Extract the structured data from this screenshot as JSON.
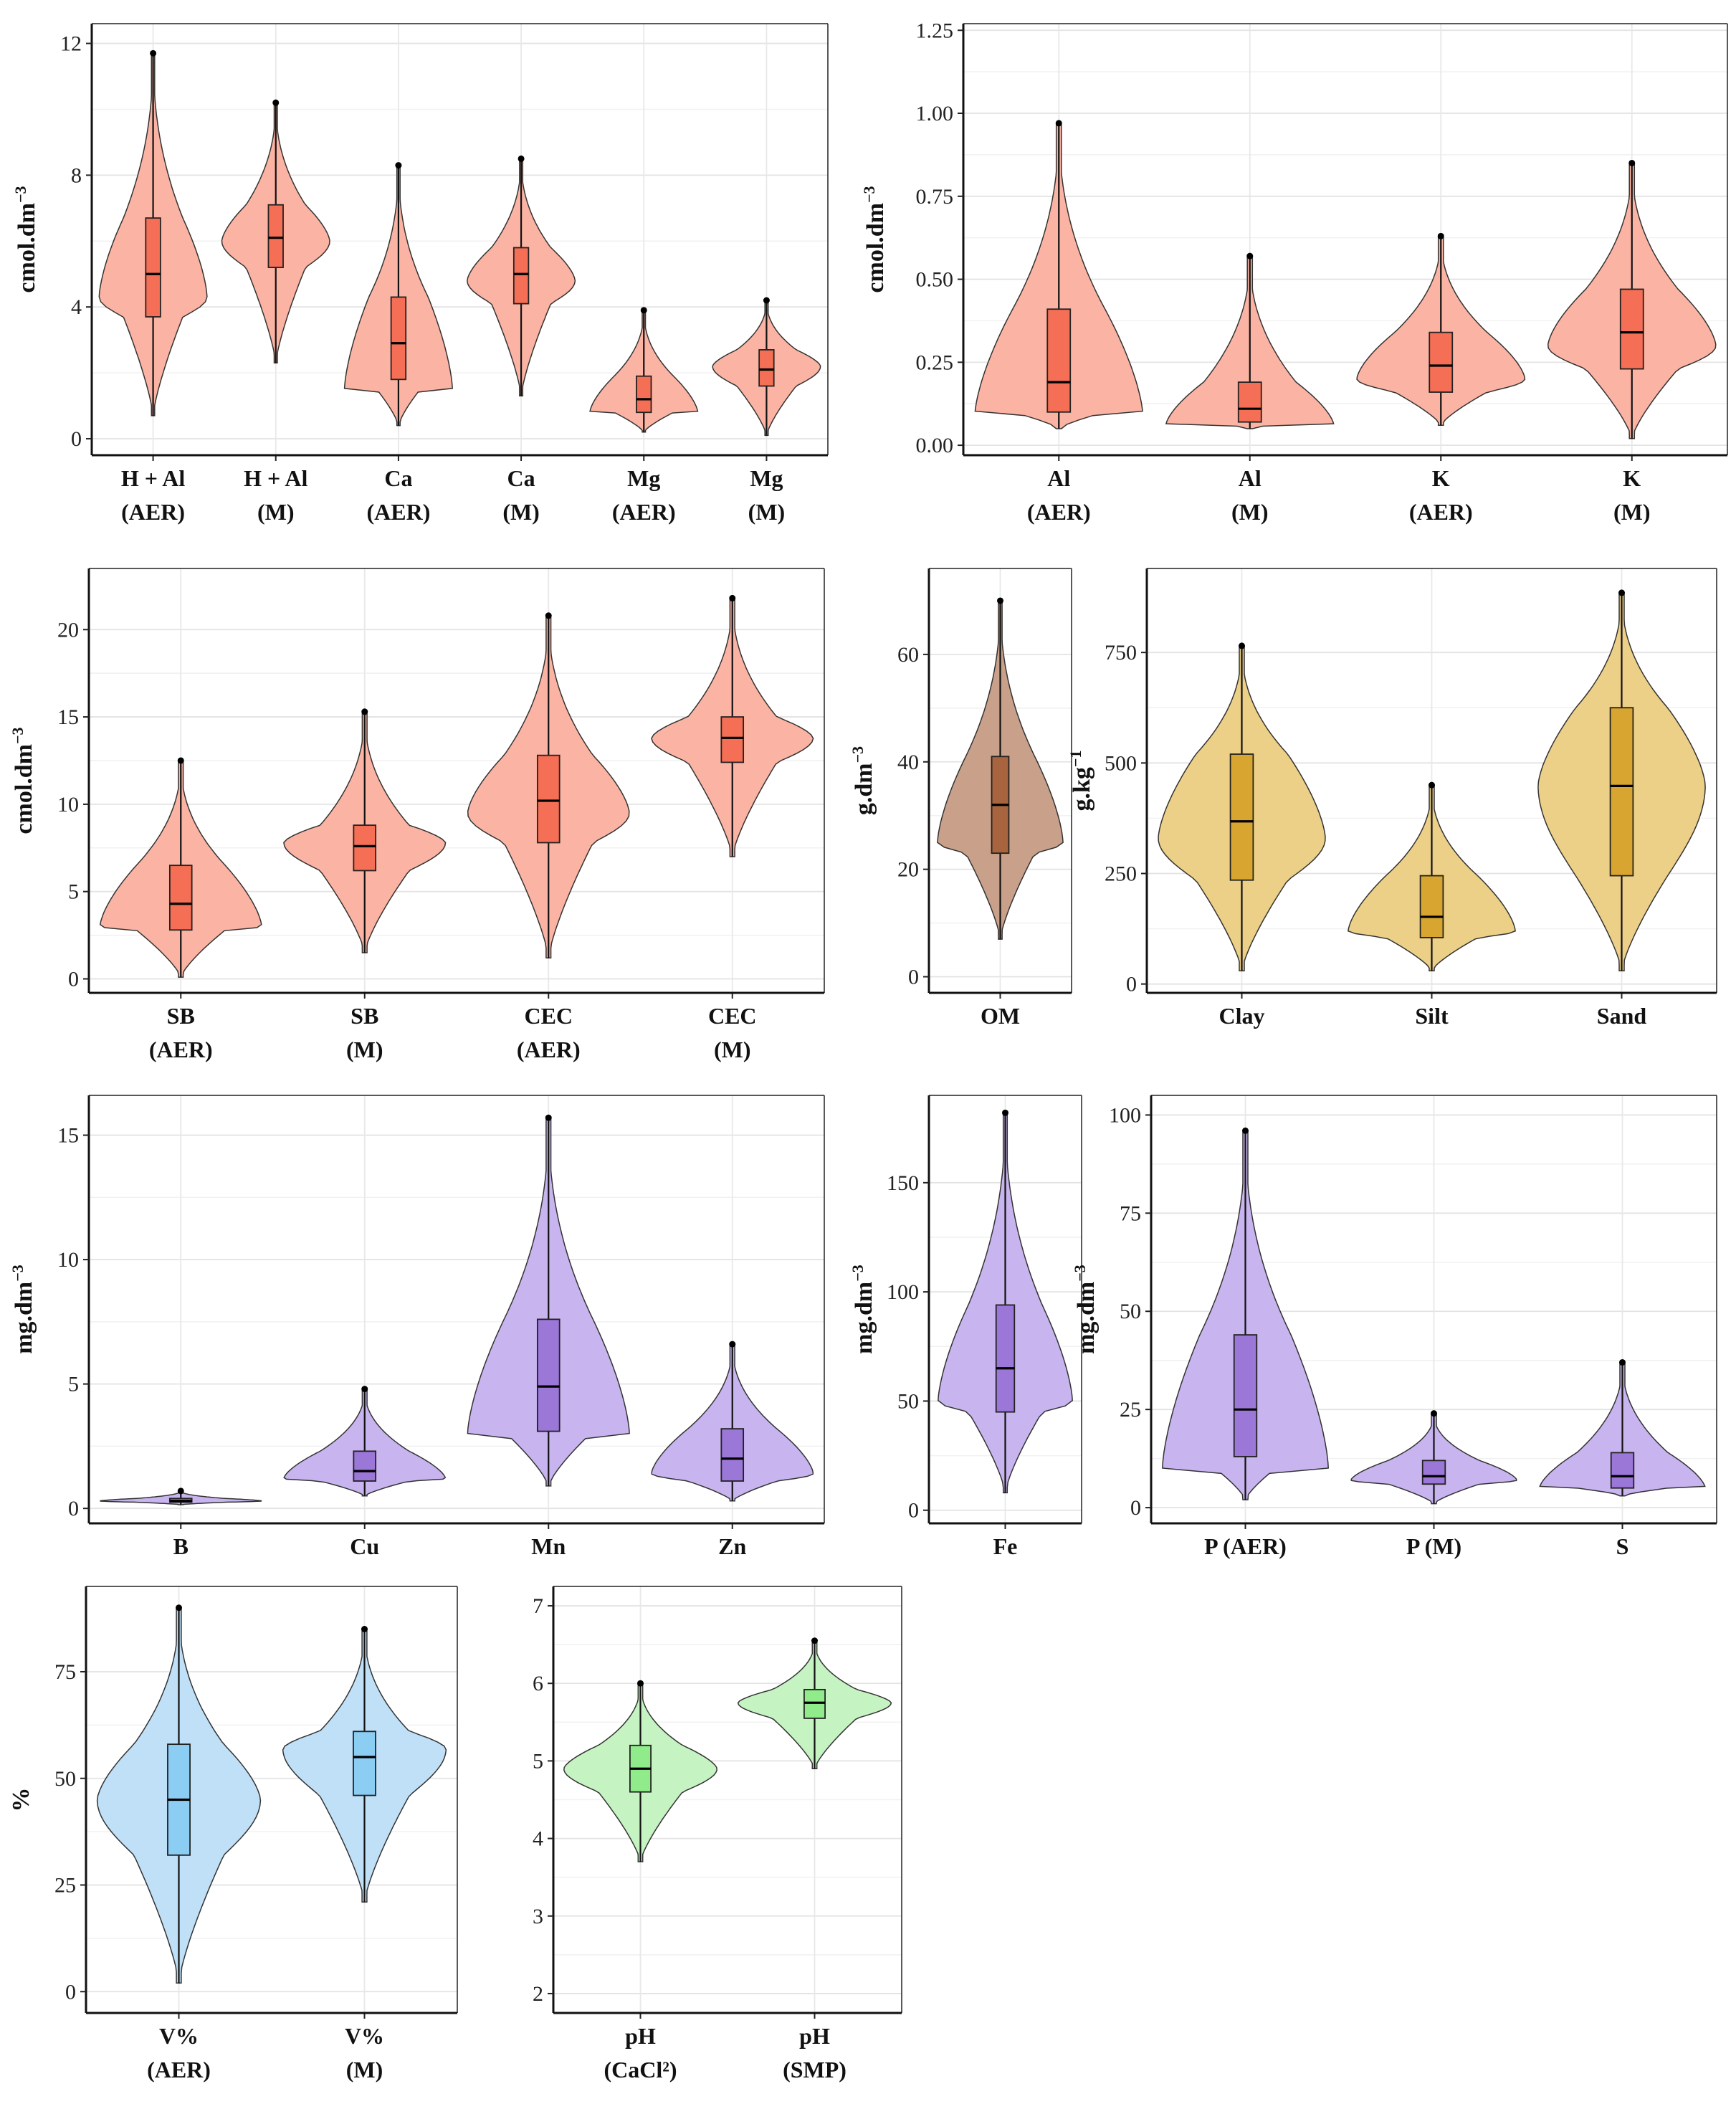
{
  "figure_title": "",
  "colors": {
    "red_violin": "#fbb4a3",
    "red_box": "#f46f55",
    "brown_violin": "#c9a08a",
    "brown_box": "#a8643f",
    "gold_violin": "#ecd087",
    "gold_box": "#d9a531",
    "purple_violin": "#c8b4ee",
    "purple_box": "#9b77d8",
    "blue_violin": "#bfe0f7",
    "blue_box": "#8ccdf4",
    "green_violin": "#c5f3c1",
    "green_box": "#90eb8a"
  },
  "chart_data": [
    {
      "type": "violin",
      "ylabel": "cmol.dm",
      "ylabel_sup": "−3",
      "ylim": [
        -0.5,
        12.6
      ],
      "yticks": [
        0,
        4,
        8,
        12
      ],
      "palette": "red",
      "categories": [
        {
          "line1": "H + Al",
          "line2": "(AER)",
          "min": 0.7,
          "q1": 3.7,
          "median": 5.0,
          "q3": 6.7,
          "max": 11.7,
          "peak": 4.3
        },
        {
          "line1": "H + Al",
          "line2": "(M)",
          "min": 2.3,
          "q1": 5.2,
          "median": 6.1,
          "q3": 7.1,
          "max": 10.2,
          "peak": 6.0
        },
        {
          "line1": "Ca",
          "line2": "(AER)",
          "min": 0.4,
          "q1": 1.8,
          "median": 2.9,
          "q3": 4.3,
          "max": 8.3,
          "peak": 1.5
        },
        {
          "line1": "Ca",
          "line2": "(M)",
          "min": 1.3,
          "q1": 4.1,
          "median": 5.0,
          "q3": 5.8,
          "max": 8.5,
          "peak": 4.8
        },
        {
          "line1": "Mg",
          "line2": "(AER)",
          "min": 0.2,
          "q1": 0.8,
          "median": 1.2,
          "q3": 1.9,
          "max": 3.9,
          "peak": 0.8
        },
        {
          "line1": "Mg",
          "line2": "(M)",
          "min": 0.1,
          "q1": 1.6,
          "median": 2.1,
          "q3": 2.7,
          "max": 4.2,
          "peak": 2.2
        }
      ]
    },
    {
      "type": "violin",
      "ylabel": "cmol.dm",
      "ylabel_sup": "−3",
      "ylim": [
        -0.03,
        1.27
      ],
      "yticks": [
        0.0,
        0.25,
        0.5,
        0.75,
        1.0,
        1.25
      ],
      "ytick_labels": [
        "0.00",
        "0.25",
        "0.50",
        "0.75",
        "1.00",
        "1.25"
      ],
      "palette": "red",
      "categories": [
        {
          "line1": "Al",
          "line2": "(AER)",
          "min": 0.05,
          "q1": 0.1,
          "median": 0.19,
          "q3": 0.41,
          "max": 0.97,
          "peak": 0.09
        },
        {
          "line1": "Al",
          "line2": "(M)",
          "min": 0.05,
          "q1": 0.07,
          "median": 0.11,
          "q3": 0.19,
          "max": 0.57,
          "peak": 0.06
        },
        {
          "line1": "K",
          "line2": "(AER)",
          "min": 0.06,
          "q1": 0.16,
          "median": 0.24,
          "q3": 0.34,
          "max": 0.63,
          "peak": 0.2
        },
        {
          "line1": "K",
          "line2": "(M)",
          "min": 0.02,
          "q1": 0.23,
          "median": 0.34,
          "q3": 0.47,
          "max": 0.85,
          "peak": 0.3
        }
      ]
    },
    {
      "type": "violin",
      "ylabel": "cmol.dm",
      "ylabel_sup": "−3",
      "ylim": [
        -0.8,
        23.5
      ],
      "yticks": [
        0,
        5,
        10,
        15,
        20
      ],
      "palette": "red",
      "categories": [
        {
          "line1": "SB",
          "line2": "(AER)",
          "min": 0.1,
          "q1": 2.8,
          "median": 4.3,
          "q3": 6.5,
          "max": 12.5,
          "peak": 3.0
        },
        {
          "line1": "SB",
          "line2": "(M)",
          "min": 1.5,
          "q1": 6.2,
          "median": 7.6,
          "q3": 8.8,
          "max": 15.3,
          "peak": 7.8
        },
        {
          "line1": "CEC",
          "line2": "(AER)",
          "min": 1.2,
          "q1": 7.8,
          "median": 10.2,
          "q3": 12.8,
          "max": 20.8,
          "peak": 9.5
        },
        {
          "line1": "CEC",
          "line2": "(M)",
          "min": 7.0,
          "q1": 12.4,
          "median": 13.8,
          "q3": 15.0,
          "max": 21.8,
          "peak": 13.8
        }
      ]
    },
    {
      "type": "violin",
      "ylabel": "g.dm",
      "ylabel_sup": "−3",
      "ylim": [
        -3,
        76
      ],
      "yticks": [
        0,
        20,
        40,
        60
      ],
      "palette": "brown",
      "categories": [
        {
          "line1": "OM",
          "line2": "",
          "min": 7,
          "q1": 23,
          "median": 32,
          "q3": 41,
          "max": 70,
          "peak": 25
        }
      ]
    },
    {
      "type": "violin",
      "ylabel": "g.kg",
      "ylabel_sup": "−1",
      "ylim": [
        -20,
        940
      ],
      "yticks": [
        0,
        250,
        500,
        750
      ],
      "palette": "gold",
      "categories": [
        {
          "line1": "Clay",
          "line2": "",
          "min": 30,
          "q1": 235,
          "median": 368,
          "q3": 520,
          "max": 765,
          "peak": 330
        },
        {
          "line1": "Silt",
          "line2": "",
          "min": 30,
          "q1": 105,
          "median": 152,
          "q3": 245,
          "max": 450,
          "peak": 120
        },
        {
          "line1": "Sand",
          "line2": "",
          "min": 30,
          "q1": 245,
          "median": 448,
          "q3": 625,
          "max": 885,
          "peak": 450
        }
      ]
    },
    {
      "type": "violin",
      "ylabel": "mg.dm",
      "ylabel_sup": "−3",
      "ylim": [
        -0.6,
        16.6
      ],
      "yticks": [
        0,
        5,
        10,
        15
      ],
      "palette": "purple",
      "categories": [
        {
          "line1": "B",
          "line2": "",
          "min": 0.15,
          "q1": 0.25,
          "median": 0.3,
          "q3": 0.4,
          "max": 0.7,
          "peak": 0.3
        },
        {
          "line1": "Cu",
          "line2": "",
          "min": 0.5,
          "q1": 1.1,
          "median": 1.5,
          "q3": 2.3,
          "max": 4.8,
          "peak": 1.2
        },
        {
          "line1": "Mn",
          "line2": "",
          "min": 0.9,
          "q1": 3.1,
          "median": 4.9,
          "q3": 7.6,
          "max": 15.7,
          "peak": 3.0
        },
        {
          "line1": "Zn",
          "line2": "",
          "min": 0.3,
          "q1": 1.1,
          "median": 2.0,
          "q3": 3.2,
          "max": 6.6,
          "peak": 1.4
        }
      ]
    },
    {
      "type": "violin",
      "ylabel": "mg.dm",
      "ylabel_sup": "−3",
      "ylim": [
        -6,
        190
      ],
      "yticks": [
        0,
        50,
        100,
        150
      ],
      "palette": "purple",
      "categories": [
        {
          "line1": "Fe",
          "line2": "",
          "min": 8,
          "q1": 45,
          "median": 65,
          "q3": 94,
          "max": 182,
          "peak": 50
        }
      ]
    },
    {
      "type": "violin",
      "ylabel": "mg.dm",
      "ylabel_sup": "−3",
      "ylim": [
        -4,
        105
      ],
      "yticks": [
        0,
        25,
        50,
        75,
        100
      ],
      "palette": "purple",
      "categories": [
        {
          "line1": "P (AER)",
          "line2": "",
          "min": 2,
          "q1": 13,
          "median": 25,
          "q3": 44,
          "max": 96,
          "peak": 10
        },
        {
          "line1": "P (M)",
          "line2": "",
          "min": 1,
          "q1": 6,
          "median": 8,
          "q3": 12,
          "max": 24,
          "peak": 7
        },
        {
          "line1": "S",
          "line2": "",
          "min": 3,
          "q1": 5,
          "median": 8,
          "q3": 14,
          "max": 37,
          "peak": 5
        }
      ]
    },
    {
      "type": "violin",
      "ylabel": "%",
      "ylabel_sup": "",
      "ylim": [
        -5,
        95
      ],
      "yticks": [
        0,
        25,
        50,
        75
      ],
      "palette": "blue",
      "categories": [
        {
          "line1": "V%",
          "line2": "(AER)",
          "min": 2,
          "q1": 32,
          "median": 45,
          "q3": 58,
          "max": 90,
          "peak": 45
        },
        {
          "line1": "V%",
          "line2": "(M)",
          "min": 21,
          "q1": 46,
          "median": 55,
          "q3": 61,
          "max": 85,
          "peak": 57
        }
      ]
    },
    {
      "type": "violin",
      "ylabel": "",
      "ylabel_sup": "",
      "ylim": [
        1.75,
        7.25
      ],
      "yticks": [
        2,
        3,
        4,
        5,
        6,
        7
      ],
      "palette": "green",
      "categories": [
        {
          "line1": "pH",
          "line2": "(CaCl²)",
          "min": 3.7,
          "q1": 4.6,
          "median": 4.9,
          "q3": 5.2,
          "max": 6.0,
          "peak": 4.9
        },
        {
          "line1": "pH",
          "line2": "(SMP)",
          "min": 4.9,
          "q1": 5.55,
          "median": 5.75,
          "q3": 5.92,
          "max": 6.55,
          "peak": 5.75
        }
      ]
    }
  ]
}
